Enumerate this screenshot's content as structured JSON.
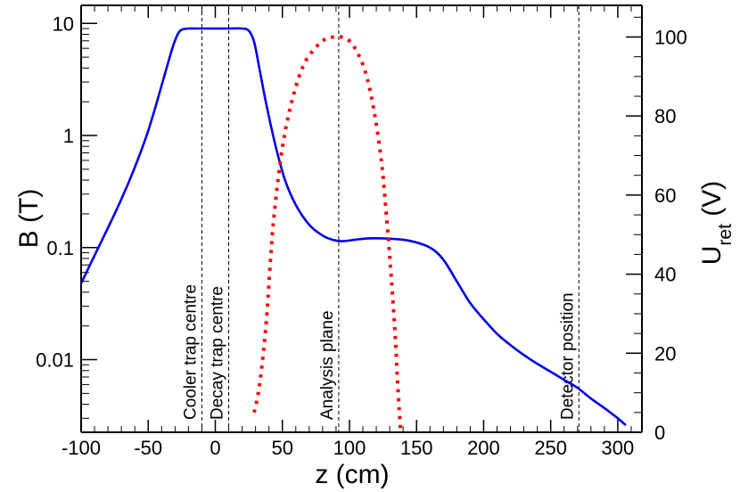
{
  "chart_data": {
    "type": "line",
    "xlabel": "z (cm)",
    "ylabel_left": "B (T)",
    "ylabel_right": {
      "main": "U",
      "sub": "ret",
      "unit": " (V)"
    },
    "x_range": [
      -100,
      318
    ],
    "y_left": {
      "scale": "log",
      "range": [
        0.00225,
        14.5
      ],
      "ticks": [
        10,
        1,
        0.1,
        0.01
      ],
      "tick_labels": [
        "10",
        "1",
        "0.1",
        "0.01"
      ]
    },
    "y_right": {
      "scale": "linear",
      "range": [
        0,
        108
      ],
      "ticks": [
        0,
        20,
        40,
        60,
        80,
        100
      ],
      "tick_labels": [
        "0",
        "20",
        "40",
        "60",
        "80",
        "100"
      ]
    },
    "x_ticks": [
      -100,
      -50,
      0,
      50,
      100,
      150,
      200,
      250,
      300
    ],
    "x_tick_labels": [
      "-100",
      "-50",
      "0",
      "50",
      "100",
      "150",
      "200",
      "250",
      "300"
    ],
    "series": [
      {
        "name": "B field",
        "axis": "left",
        "style": "solid",
        "color": "#0000e6",
        "x": [
          -100,
          -90,
          -80,
          -70,
          -60,
          -50,
          -40,
          -32,
          -28,
          -25,
          -20,
          -15,
          -10,
          0,
          10,
          20,
          25,
          29,
          33,
          38,
          45,
          52,
          60,
          70,
          80,
          88,
          95,
          105,
          115,
          130,
          145,
          160,
          170,
          180,
          190,
          200,
          210,
          220,
          230,
          240,
          250,
          260,
          270,
          280,
          290,
          300,
          306
        ],
        "y": [
          0.048,
          0.085,
          0.15,
          0.27,
          0.52,
          1.1,
          2.8,
          6.0,
          8.0,
          8.8,
          9.0,
          9.0,
          9.0,
          9.0,
          9.0,
          9.0,
          8.6,
          6.8,
          3.9,
          1.9,
          0.8,
          0.4,
          0.24,
          0.16,
          0.128,
          0.117,
          0.114,
          0.118,
          0.121,
          0.12,
          0.115,
          0.1,
          0.078,
          0.05,
          0.032,
          0.023,
          0.017,
          0.0135,
          0.011,
          0.0092,
          0.0078,
          0.0066,
          0.0056,
          0.0045,
          0.0037,
          0.003,
          0.0026
        ]
      },
      {
        "name": "U_ret",
        "axis": "right",
        "style": "dotted",
        "color": "#ff0000",
        "x": [
          29,
          33,
          38,
          43,
          50,
          58,
          66,
          74,
          82,
          88,
          94,
          100,
          106,
          112,
          118,
          124,
          128,
          131,
          134,
          136,
          138
        ],
        "y": [
          5,
          12,
          28,
          52,
          72,
          85,
          93,
          97,
          99.5,
          100,
          100,
          99,
          96,
          91,
          82,
          68,
          53,
          40,
          25,
          12,
          1
        ]
      }
    ],
    "markers": [
      {
        "x": -10,
        "label": "Cooler trap centre"
      },
      {
        "x": 10,
        "label": "Decay trap centre"
      },
      {
        "x": 92,
        "label": "Analysis plane"
      },
      {
        "x": 271,
        "label": "Detector position"
      }
    ]
  }
}
